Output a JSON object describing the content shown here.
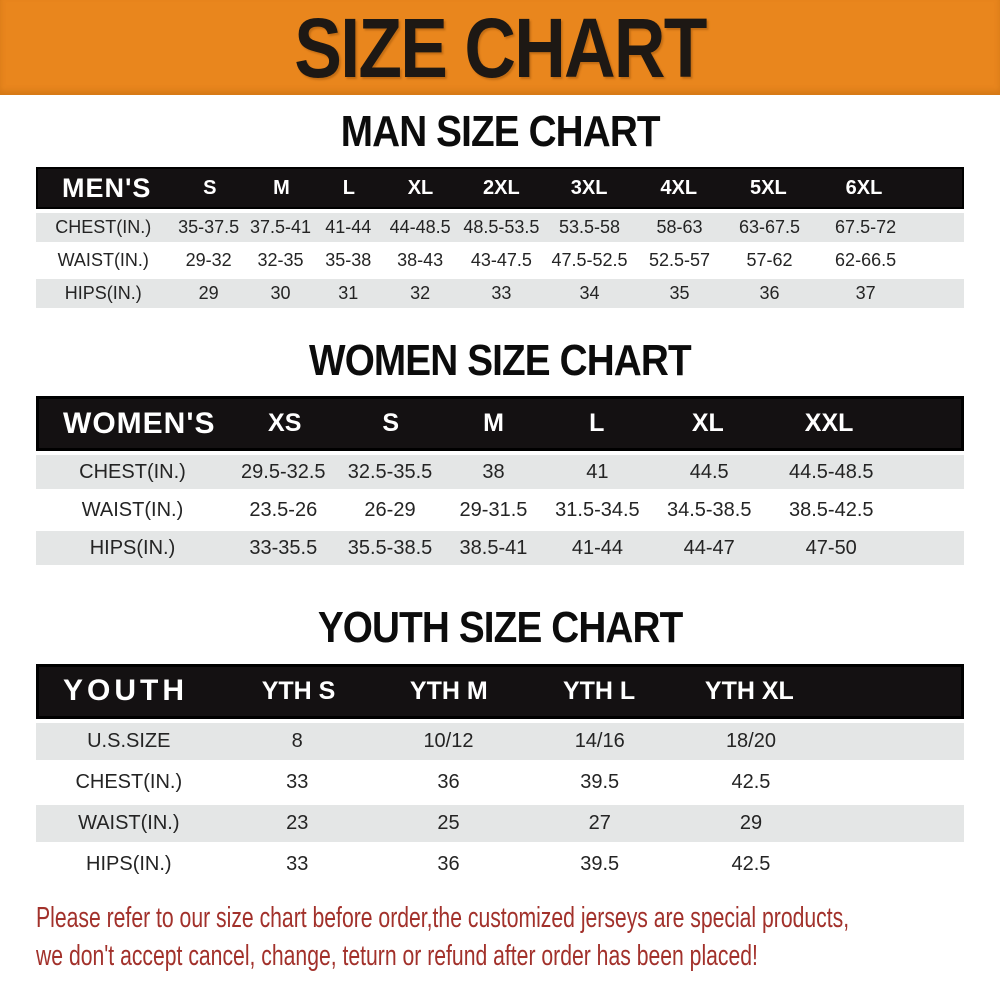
{
  "banner": {
    "title": "SIZE CHART"
  },
  "chart_data": [
    {
      "type": "table",
      "title": "MAN SIZE CHART",
      "corner_label": "MEN'S",
      "columns": [
        "S",
        "M",
        "L",
        "XL",
        "2XL",
        "3XL",
        "4XL",
        "5XL",
        "6XL"
      ],
      "rows": [
        {
          "label": "CHEST(IN.)",
          "values": [
            "35-37.5",
            "37.5-41",
            "41-44",
            "44-48.5",
            "48.5-53.5",
            "53.5-58",
            "58-63",
            "63-67.5",
            "67.5-72"
          ]
        },
        {
          "label": "WAIST(IN.)",
          "values": [
            "29-32",
            "32-35",
            "35-38",
            "38-43",
            "43-47.5",
            "47.5-52.5",
            "52.5-57",
            "57-62",
            "62-66.5"
          ]
        },
        {
          "label": "HIPS(IN.)",
          "values": [
            "29",
            "30",
            "31",
            "32",
            "33",
            "34",
            "35",
            "36",
            "37"
          ]
        }
      ]
    },
    {
      "type": "table",
      "title": "WOMEN SIZE CHART",
      "corner_label": "WOMEN'S",
      "columns": [
        "XS",
        "S",
        "M",
        "L",
        "XL",
        "XXL"
      ],
      "rows": [
        {
          "label": "CHEST(IN.)",
          "values": [
            "29.5-32.5",
            "32.5-35.5",
            "38",
            "41",
            "44.5",
            "44.5-48.5"
          ]
        },
        {
          "label": "WAIST(IN.)",
          "values": [
            "23.5-26",
            "26-29",
            "29-31.5",
            "31.5-34.5",
            "34.5-38.5",
            "38.5-42.5"
          ]
        },
        {
          "label": "HIPS(IN.)",
          "values": [
            "33-35.5",
            "35.5-38.5",
            "38.5-41",
            "41-44",
            "44-47",
            "47-50"
          ]
        }
      ]
    },
    {
      "type": "table",
      "title": "YOUTH SIZE CHART",
      "corner_label": "YOUTH",
      "columns": [
        "YTH S",
        "YTH M",
        "YTH L",
        "YTH XL"
      ],
      "rows": [
        {
          "label": "U.S.SIZE",
          "values": [
            "8",
            "10/12",
            "14/16",
            "18/20"
          ]
        },
        {
          "label": "CHEST(IN.)",
          "values": [
            "33",
            "36",
            "39.5",
            "42.5"
          ]
        },
        {
          "label": "WAIST(IN.)",
          "values": [
            "23",
            "25",
            "27",
            "29"
          ]
        },
        {
          "label": "HIPS(IN.)",
          "values": [
            "33",
            "36",
            "39.5",
            "42.5"
          ]
        }
      ]
    }
  ],
  "footer": {
    "line1": "Please refer to our size chart before order,the customized jerseys are special products,",
    "line2": "we don't accept cancel, change, teturn or refund after order has been placed!"
  },
  "colors": {
    "banner_bg": "#e9861d",
    "banner_text": "#1d1814",
    "header_bar_bg": "#141112",
    "header_bar_text": "#ffffff",
    "row_shade_bg": "#e4e6e6",
    "row_plain_bg": "#ffffff",
    "footer_text": "#a2312b"
  }
}
